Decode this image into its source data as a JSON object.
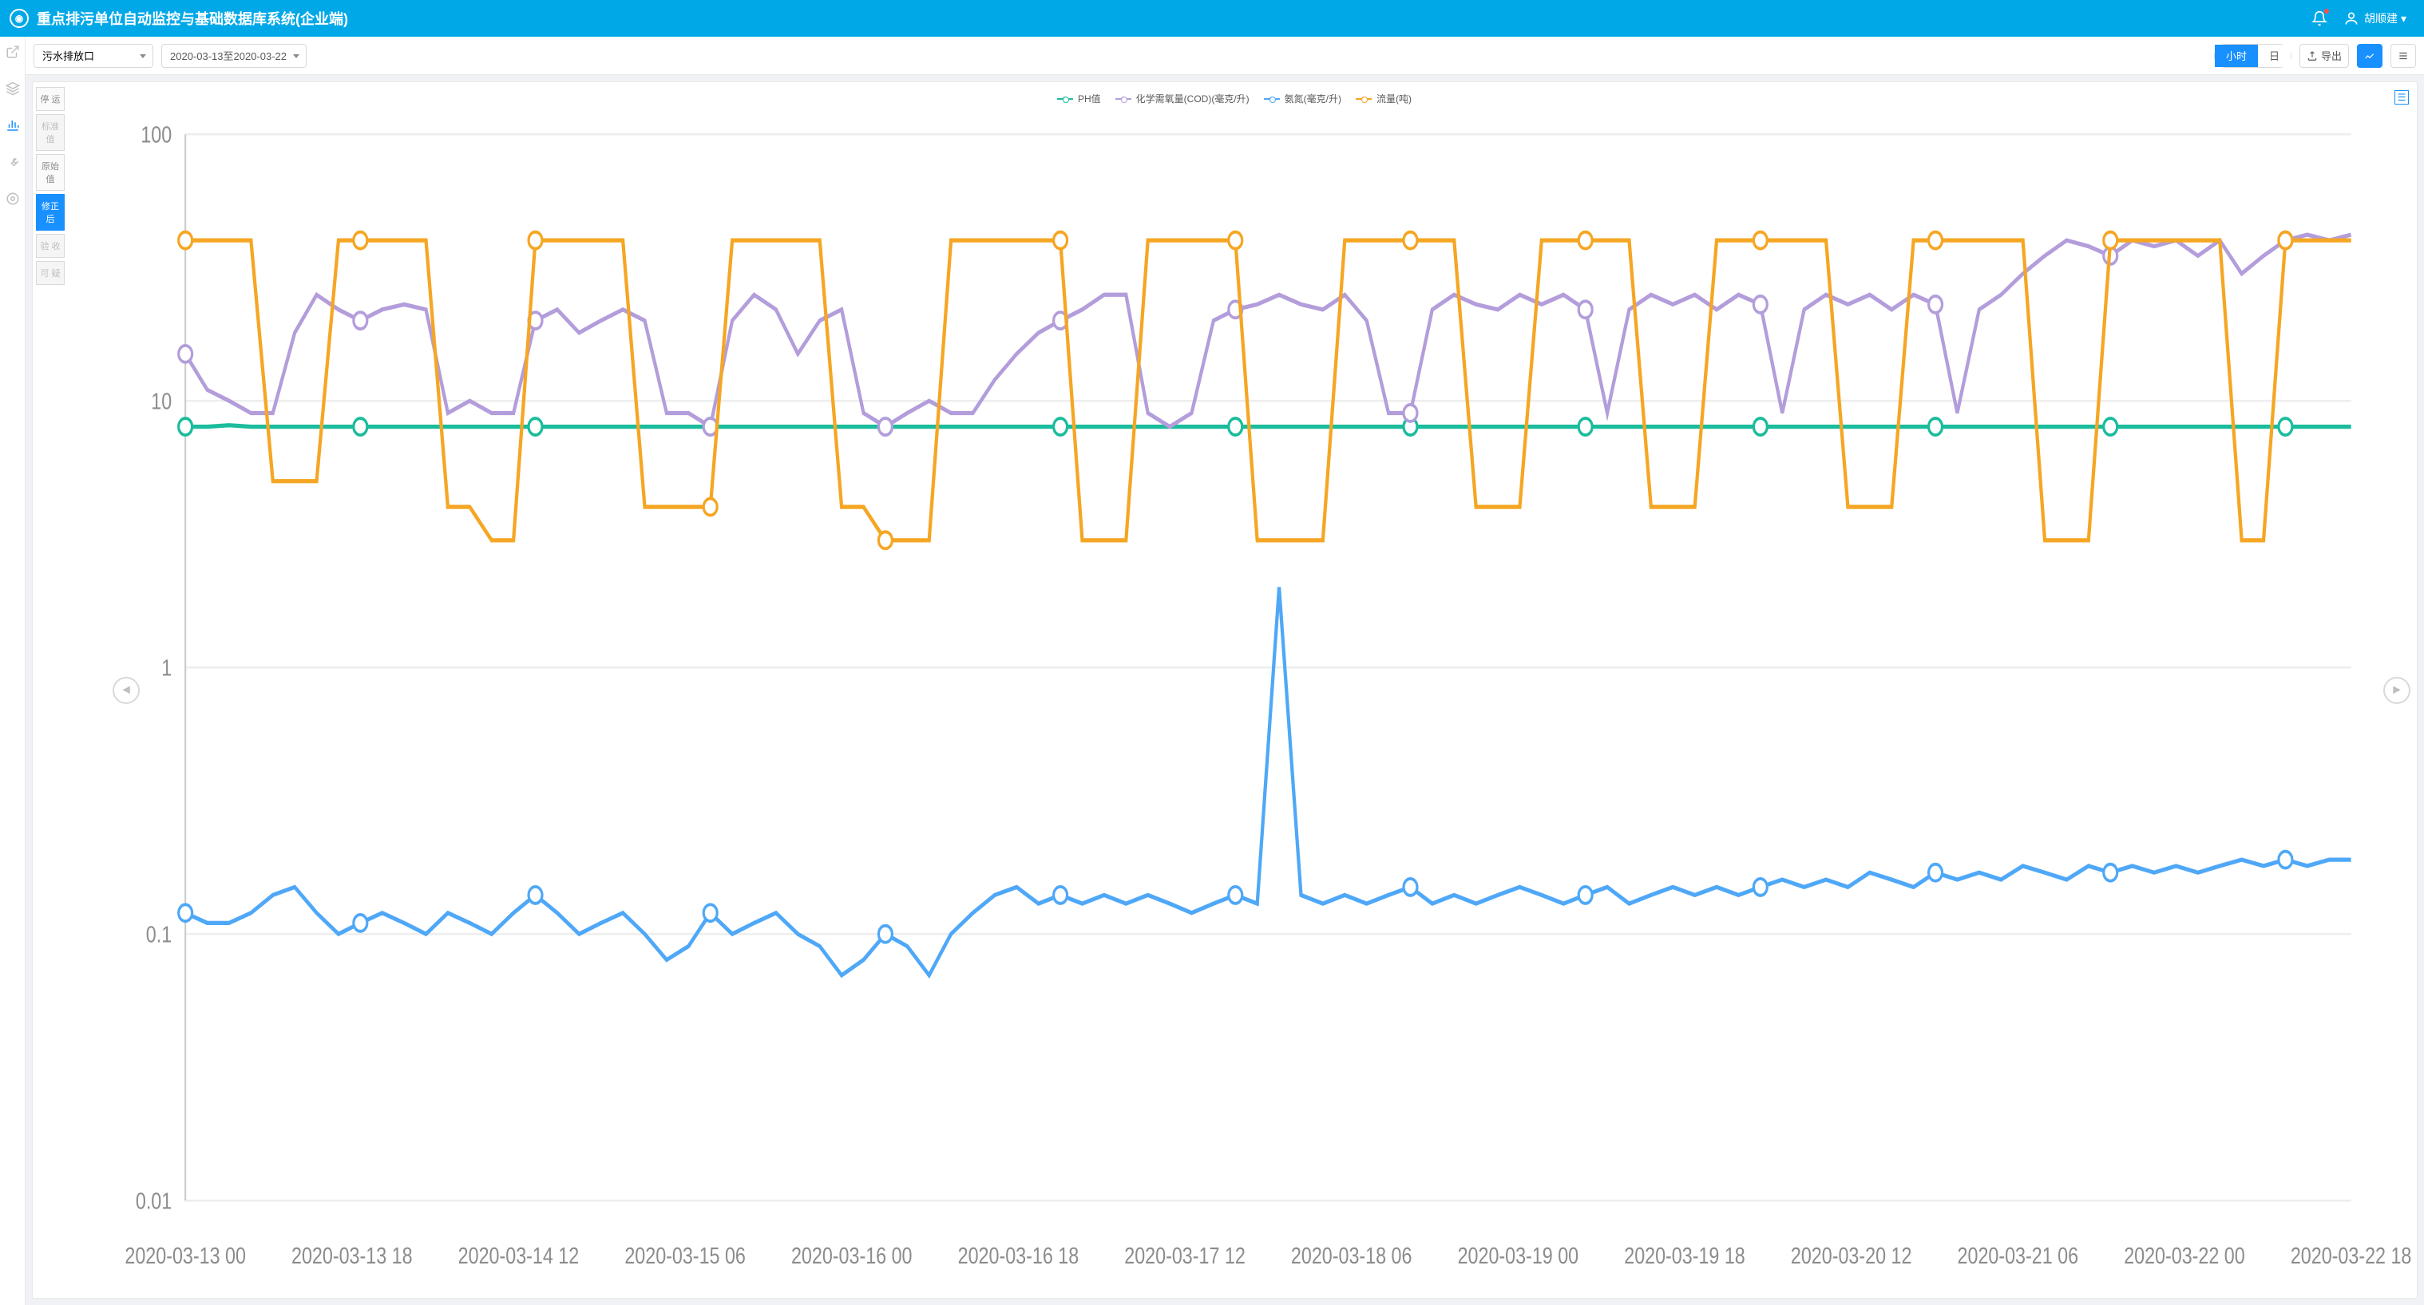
{
  "header": {
    "title": "重点排污单位自动监控与基础数据库系统(企业端)",
    "username": "胡顺建"
  },
  "toolbar": {
    "outlet_select": "污水排放口",
    "date_range": "2020-03-13至2020-03-22",
    "seg_hour": "小时",
    "seg_day": "日",
    "export_label": "导出"
  },
  "value_tabs": [
    {
      "label": "停 运",
      "state": "normal"
    },
    {
      "label": "标准值",
      "state": "disabled"
    },
    {
      "label": "原始值",
      "state": "normal"
    },
    {
      "label": "修正后",
      "state": "active"
    },
    {
      "label": "验 收",
      "state": "disabled"
    },
    {
      "label": "可 疑",
      "state": "disabled"
    }
  ],
  "chart": {
    "type": "line",
    "yscale": "log",
    "ylim": [
      0.01,
      100
    ],
    "yticks": [
      0.01,
      0.1,
      1,
      10,
      100
    ],
    "ytick_labels": [
      "0.01",
      "0.1",
      "1",
      "10",
      "100"
    ],
    "xtick_labels": [
      "2020-03-13 00",
      "2020-03-13 18",
      "2020-03-14 12",
      "2020-03-15 06",
      "2020-03-16 00",
      "2020-03-16 18",
      "2020-03-17 12",
      "2020-03-18 06",
      "2020-03-19 00",
      "2020-03-19 18",
      "2020-03-20 12",
      "2020-03-21 06",
      "2020-03-22 00",
      "2020-03-22 18"
    ],
    "background_color": "#ffffff",
    "grid_color": "#eeeeee",
    "legend": [
      {
        "label": "PH值",
        "color": "#1abc9c"
      },
      {
        "label": "化学需氧量(COD)(毫克/升)",
        "color": "#b39ddb"
      },
      {
        "label": "氨氮(毫克/升)",
        "color": "#4fa8f7"
      },
      {
        "label": "流量(吨)",
        "color": "#f5a623"
      }
    ],
    "series": {
      "ph": {
        "color": "#1abc9c",
        "width": 2,
        "marker": "circle",
        "marker_size": 4,
        "y": [
          8,
          8,
          8.1,
          8,
          8,
          8,
          8,
          8,
          8,
          8,
          8,
          8,
          8,
          8,
          8,
          8,
          8,
          8,
          8,
          8,
          8,
          8,
          8,
          8,
          8,
          8,
          8,
          8,
          8,
          8,
          8,
          8,
          8,
          8,
          8,
          8,
          8,
          8,
          8,
          8,
          8,
          8,
          8,
          8,
          8,
          8,
          8,
          8,
          8,
          8,
          8,
          8,
          8,
          8,
          8,
          8,
          8,
          8,
          8,
          8,
          8,
          8,
          8,
          8,
          8,
          8,
          8,
          8,
          8,
          8,
          8,
          8,
          8,
          8,
          8,
          8,
          8,
          8,
          8,
          8,
          8,
          8,
          8,
          8,
          8,
          8,
          8,
          8,
          8,
          8,
          8,
          8,
          8,
          8,
          8,
          8,
          8,
          8,
          8,
          8
        ]
      },
      "cod": {
        "color": "#b39ddb",
        "width": 2,
        "marker": "circle",
        "marker_size": 4,
        "y": [
          15,
          11,
          10,
          9,
          9,
          18,
          25,
          22,
          20,
          22,
          23,
          22,
          9,
          10,
          9,
          9,
          20,
          22,
          18,
          20,
          22,
          20,
          9,
          9,
          8,
          20,
          25,
          22,
          15,
          20,
          22,
          9,
          8,
          9,
          10,
          9,
          9,
          12,
          15,
          18,
          20,
          22,
          25,
          25,
          9,
          8,
          9,
          20,
          22,
          23,
          25,
          23,
          22,
          25,
          20,
          9,
          9,
          22,
          25,
          23,
          22,
          25,
          23,
          25,
          22,
          9,
          22,
          25,
          23,
          25,
          22,
          25,
          23,
          9,
          22,
          25,
          23,
          25,
          22,
          25,
          23,
          9,
          22,
          25,
          30,
          35,
          40,
          38,
          35,
          40,
          38,
          40,
          35,
          40,
          30,
          35,
          40,
          42,
          40,
          42
        ]
      },
      "nh3": {
        "color": "#4fa8f7",
        "width": 2,
        "marker": "circle",
        "marker_size": 4,
        "y": [
          0.12,
          0.11,
          0.11,
          0.12,
          0.14,
          0.15,
          0.12,
          0.1,
          0.11,
          0.12,
          0.11,
          0.1,
          0.12,
          0.11,
          0.1,
          0.12,
          0.14,
          0.12,
          0.1,
          0.11,
          0.12,
          0.1,
          0.08,
          0.09,
          0.12,
          0.1,
          0.11,
          0.12,
          0.1,
          0.09,
          0.07,
          0.08,
          0.1,
          0.09,
          0.07,
          0.1,
          0.12,
          0.14,
          0.15,
          0.13,
          0.14,
          0.13,
          0.14,
          0.13,
          0.14,
          0.13,
          0.12,
          0.13,
          0.14,
          0.13,
          2,
          0.14,
          0.13,
          0.14,
          0.13,
          0.14,
          0.15,
          0.13,
          0.14,
          0.13,
          0.14,
          0.15,
          0.14,
          0.13,
          0.14,
          0.15,
          0.13,
          0.14,
          0.15,
          0.14,
          0.15,
          0.14,
          0.15,
          0.16,
          0.15,
          0.16,
          0.15,
          0.17,
          0.16,
          0.15,
          0.17,
          0.16,
          0.17,
          0.16,
          0.18,
          0.17,
          0.16,
          0.18,
          0.17,
          0.18,
          0.17,
          0.18,
          0.17,
          0.18,
          0.19,
          0.18,
          0.19,
          0.18,
          0.19,
          0.19
        ]
      },
      "flow": {
        "color": "#f5a623",
        "width": 2,
        "marker": "circle",
        "marker_size": 4,
        "y": [
          40,
          40,
          40,
          40,
          5,
          5,
          5,
          40,
          40,
          40,
          40,
          40,
          4,
          4,
          3,
          3,
          40,
          40,
          40,
          40,
          40,
          4,
          4,
          4,
          4,
          40,
          40,
          40,
          40,
          40,
          4,
          4,
          3,
          3,
          3,
          40,
          40,
          40,
          40,
          40,
          40,
          3,
          3,
          3,
          40,
          40,
          40,
          40,
          40,
          3,
          3,
          3,
          3,
          40,
          40,
          40,
          40,
          40,
          40,
          4,
          4,
          4,
          40,
          40,
          40,
          40,
          40,
          4,
          4,
          4,
          40,
          40,
          40,
          40,
          40,
          40,
          4,
          4,
          4,
          40,
          40,
          40,
          40,
          40,
          40,
          3,
          3,
          3,
          40,
          40,
          40,
          40,
          40,
          40,
          3,
          3,
          40,
          40,
          40,
          40
        ]
      }
    }
  }
}
